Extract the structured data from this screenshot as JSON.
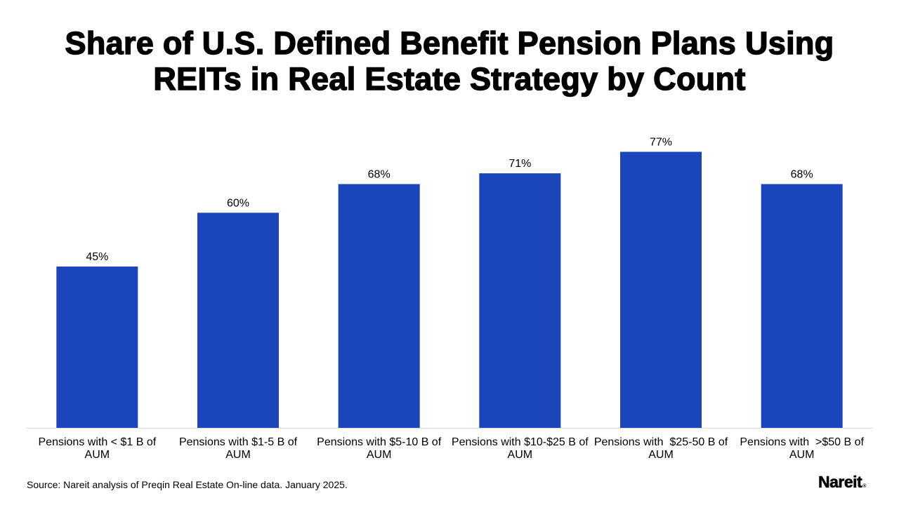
{
  "title_lines": [
    "Share of U.S. Defined Benefit Pension Plans Using",
    "REITs in Real Estate Strategy by Count"
  ],
  "source": "Source: Nareit analysis of Preqin Real Estate On-line data. January 2025.",
  "logo": {
    "text": "Nareit",
    "mark": "®"
  },
  "colors": {
    "bar": "#1b46bb",
    "axis": "#d9d9d9"
  },
  "chart_data": {
    "type": "bar",
    "title": "Share of U.S. Defined Benefit Pension Plans Using REITs in Real Estate Strategy by Count",
    "categories": [
      [
        "Pensions with < $1 B of",
        "AUM"
      ],
      [
        "Pensions with $1-5 B of",
        "AUM"
      ],
      [
        "Pensions with $5-10 B of",
        "AUM"
      ],
      [
        "Pensions with $10-$25 B of",
        "AUM"
      ],
      [
        "Pensions with  $25-50 B of",
        "AUM"
      ],
      [
        "Pensions with  >$50 B of",
        "AUM"
      ]
    ],
    "values": [
      45,
      60,
      68,
      71,
      77,
      68
    ],
    "value_labels": [
      "45%",
      "60%",
      "68%",
      "71%",
      "77%",
      "68%"
    ],
    "unit": "%",
    "ylim": [
      0,
      90
    ],
    "grid": false,
    "legend": "none"
  }
}
